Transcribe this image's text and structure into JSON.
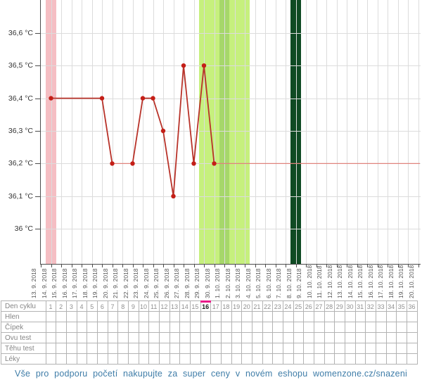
{
  "chart_data": {
    "type": "line",
    "title": "Basal body temperature cycle chart",
    "ylabel": "°C",
    "ylim": [
      35.9,
      36.7
    ],
    "yticks": [
      {
        "label": "36,6 °C",
        "temp": 36.6
      },
      {
        "label": "36,5 °C",
        "temp": 36.5
      },
      {
        "label": "36,4 °C",
        "temp": 36.4
      },
      {
        "label": "36,3 °C",
        "temp": 36.3
      },
      {
        "label": "36,2 °C",
        "temp": 36.2
      },
      {
        "label": "36,1 °C",
        "temp": 36.1
      },
      {
        "label": "36 °C",
        "temp": 36.0
      }
    ],
    "x_dates": [
      "13. 9. 2018",
      "14. 9. 2018",
      "15. 9. 2018",
      "16. 9. 2018",
      "17. 9. 2018",
      "18. 9. 2018",
      "19. 9. 2018",
      "20. 9. 2018",
      "21. 9. 2018",
      "22. 9. 2018",
      "23. 9. 2018",
      "24. 9. 2018",
      "25. 9. 2018",
      "26. 9. 2018",
      "27. 9. 2018",
      "28. 9. 2018",
      "29. 9. 2018",
      "30. 9. 2018",
      "1. 10. 2018",
      "2. 10. 2018",
      "3. 10. 2018",
      "4. 10. 2018",
      "5. 10. 2018",
      "6. 10. 2018",
      "7. 10. 2018",
      "8. 10. 2018",
      "9. 10. 2018",
      "10. 10. 2018",
      "11. 10. 2018",
      "12. 10. 2018",
      "13. 10. 2018",
      "14. 10. 2018",
      "15. 10. 2018",
      "16. 10. 2018",
      "17. 10. 2018",
      "18. 10. 2018",
      "19. 10. 2018",
      "20. 10. 2018"
    ],
    "series": [
      {
        "name": "temperature",
        "points": [
          {
            "x_index": 1,
            "date": "14. 9. 2018",
            "temp": 36.4
          },
          {
            "x_index": 6,
            "date": "19. 9. 2018",
            "temp": 36.4
          },
          {
            "x_index": 7,
            "date": "20. 9. 2018",
            "temp": 36.2
          },
          {
            "x_index": 9,
            "date": "22. 9. 2018",
            "temp": 36.2
          },
          {
            "x_index": 10,
            "date": "23. 9. 2018",
            "temp": 36.4
          },
          {
            "x_index": 11,
            "date": "24. 9. 2018",
            "temp": 36.4
          },
          {
            "x_index": 12,
            "date": "25. 9. 2018",
            "temp": 36.3
          },
          {
            "x_index": 13,
            "date": "26. 9. 2018",
            "temp": 36.1
          },
          {
            "x_index": 14,
            "date": "27. 9. 2018",
            "temp": 36.5
          },
          {
            "x_index": 15,
            "date": "28. 9. 2018",
            "temp": 36.2
          },
          {
            "x_index": 16,
            "date": "29. 9. 2018",
            "temp": 36.5
          },
          {
            "x_index": 17,
            "date": "30. 9. 2018",
            "temp": 36.2
          }
        ],
        "thin_segments": [
          [
            7,
            9
          ]
        ]
      }
    ],
    "baseline": {
      "temp": 36.2,
      "from_x_index": 17,
      "note": "thin flat line continues to right edge"
    },
    "bands": [
      {
        "name": "menstruation",
        "from_index": 1,
        "to_index": 1,
        "color": "#f5bec3"
      },
      {
        "name": "fertile-window",
        "from_index": 16,
        "to_index": 20,
        "color": "#c6f07d"
      },
      {
        "name": "ovulation",
        "from_index": 18,
        "to_index": 18,
        "color": "#a6d76a"
      },
      {
        "name": "expected-period",
        "from_index": 25,
        "to_index": 25,
        "color": "#0f4a23"
      }
    ],
    "legend": "none",
    "grid": true,
    "colors": {
      "line": "#b83229",
      "point": "#c41f17",
      "thin_line": "#e0837d",
      "grid": "#dcdcdc",
      "axis": "#4d4d4d",
      "y_label_text": "#333333",
      "date_text": "#555555"
    }
  },
  "table": {
    "row_labels": [
      "Den cyklu",
      "Hlen",
      "Čípek",
      "Ovu test",
      "Těhu test",
      "Léky"
    ],
    "day_numbers": [
      1,
      2,
      3,
      4,
      5,
      6,
      7,
      8,
      9,
      10,
      11,
      12,
      13,
      14,
      15,
      16,
      17,
      18,
      19,
      20,
      21,
      22,
      23,
      24,
      25,
      26,
      27,
      28,
      29,
      30,
      31,
      32,
      33,
      34,
      35,
      36
    ],
    "highlighted_day": 16,
    "colors": {
      "border": "#b3b3b3",
      "label_text": "#858585",
      "number_text": "#8f8f8f",
      "highlight_bar": "#ea1889",
      "highlight_text": "#1a1a1a"
    }
  },
  "footer": {
    "text": "Vše pro podporu početí nakupujte za super ceny v novém eshopu womenzone.cz/snazeni",
    "color": "#3f7da8"
  }
}
